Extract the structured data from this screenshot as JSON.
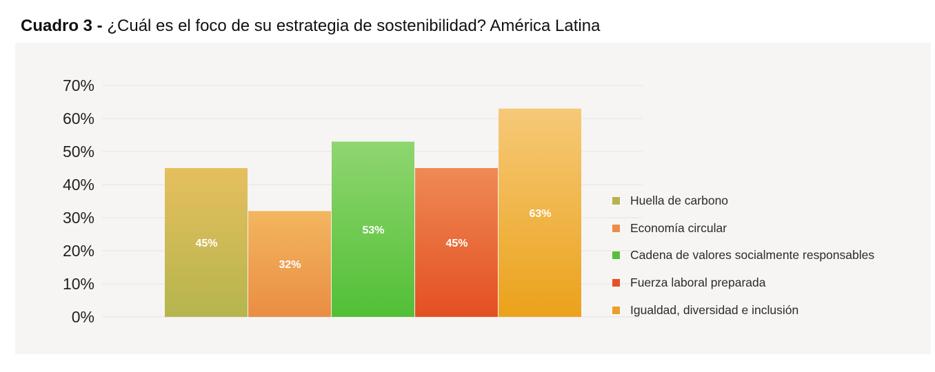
{
  "title": {
    "prefix": "Cuadro 3 -",
    "text": "¿Cuál es el foco de su estrategia de sostenibilidad? América Latina"
  },
  "chart_data": {
    "type": "bar",
    "title": "¿Cuál es el foco de su estrategia de sostenibilidad? América Latina",
    "xlabel": "",
    "ylabel": "",
    "ylim": [
      0,
      70
    ],
    "yticks": [
      0,
      10,
      20,
      30,
      40,
      50,
      60,
      70
    ],
    "ytick_labels": [
      "0%",
      "10%",
      "20%",
      "30%",
      "40%",
      "50%",
      "60%",
      "70%"
    ],
    "grid": true,
    "legend_position": "right",
    "categories": [
      "Huella de carbono",
      "Economía circular",
      "Cadena de valores socialmente responsables",
      "Fuerza laboral preparada",
      "Igualdad, diversidad e inclusión"
    ],
    "values": [
      45,
      32,
      53,
      45,
      63
    ],
    "data_labels": [
      "45%",
      "32%",
      "53%",
      "45%",
      "63%"
    ],
    "colors": [
      {
        "top": "#e6bf5e",
        "bottom": "#b5b54e",
        "legend": "#b7b24f"
      },
      {
        "top": "#f3b65f",
        "bottom": "#ea8d43",
        "legend": "#ea8d4b"
      },
      {
        "top": "#8fd670",
        "bottom": "#52bf36",
        "legend": "#54bf3a"
      },
      {
        "top": "#ee8a55",
        "bottom": "#e44f22",
        "legend": "#e4512a"
      },
      {
        "top": "#f6c978",
        "bottom": "#eba21b",
        "legend": "#ea9f2c"
      }
    ]
  }
}
